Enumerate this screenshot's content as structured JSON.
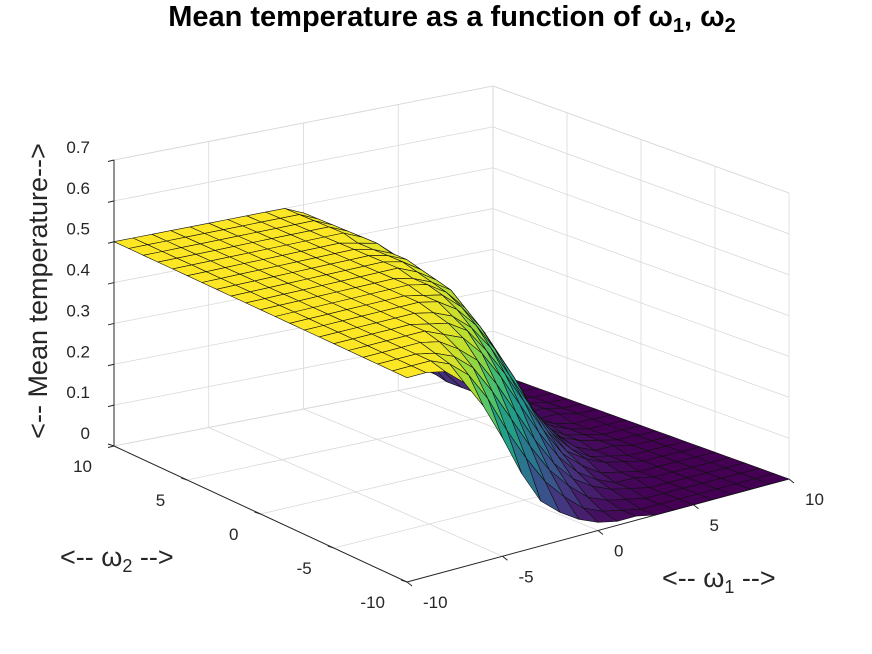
{
  "chart_data": {
    "type": "surface",
    "title_main": "Mean temperature as a function of ω",
    "title_sub1": "1",
    "title_sep": ", ω",
    "title_sub2": "2",
    "xlabel_pre": "<-- ω",
    "xlabel_sub": "1",
    "xlabel_post": " -->",
    "ylabel_pre": "<-- ω",
    "ylabel_sub": "2",
    "ylabel_post": " -->",
    "zlabel": "<-- Mean temperature-->",
    "xlim": [
      -10,
      10
    ],
    "ylim": [
      -10,
      10
    ],
    "zlim": [
      0,
      0.7
    ],
    "x_ticks": [
      "-10",
      "-5",
      "0",
      "5",
      "10"
    ],
    "y_ticks": [
      "-10",
      "-5",
      "0",
      "5",
      "10"
    ],
    "z_ticks": [
      "0",
      "0.1",
      "0.2",
      "0.3",
      "0.4",
      "0.5",
      "0.6",
      "0.7"
    ],
    "grid": true,
    "colormap": "viridis",
    "colormap_stops": [
      "#440154",
      "#472c7a",
      "#3b518b",
      "#2c718e",
      "#21908d",
      "#27ad81",
      "#5cc863",
      "#aadc32",
      "#fde725"
    ],
    "grid_resolution": 21,
    "w1": [
      -10,
      -9,
      -8,
      -7,
      -6,
      -5,
      -4,
      -3,
      -2,
      -1,
      0,
      1,
      2,
      3,
      4,
      5,
      6,
      7,
      8,
      9,
      10
    ],
    "w2": [
      -10,
      -9,
      -8,
      -7,
      -6,
      -5,
      -4,
      -3,
      -2,
      -1,
      0,
      1,
      2,
      3,
      4,
      5,
      6,
      7,
      8,
      9,
      10
    ],
    "z": [
      [
        0.5,
        0.5,
        0.49,
        0.45,
        0.38,
        0.29,
        0.19,
        0.11,
        0.07,
        0.04,
        0.02,
        0.01,
        0.01,
        0.0,
        0.0,
        0.0,
        0.0,
        0.0,
        0.0,
        0.0,
        0.0
      ],
      [
        0.5,
        0.5,
        0.5,
        0.48,
        0.44,
        0.37,
        0.28,
        0.2,
        0.13,
        0.08,
        0.04,
        0.02,
        0.01,
        0.0,
        0.0,
        0.0,
        0.0,
        0.0,
        0.0,
        0.0,
        0.0
      ],
      [
        0.5,
        0.5,
        0.5,
        0.49,
        0.47,
        0.43,
        0.36,
        0.28,
        0.2,
        0.13,
        0.08,
        0.04,
        0.02,
        0.01,
        0.0,
        0.0,
        0.0,
        0.0,
        0.0,
        0.0,
        0.0
      ],
      [
        0.5,
        0.5,
        0.5,
        0.5,
        0.49,
        0.46,
        0.42,
        0.35,
        0.27,
        0.19,
        0.12,
        0.07,
        0.04,
        0.02,
        0.01,
        0.0,
        0.0,
        0.0,
        0.0,
        0.0,
        0.0
      ],
      [
        0.5,
        0.5,
        0.5,
        0.5,
        0.5,
        0.48,
        0.46,
        0.41,
        0.34,
        0.26,
        0.18,
        0.11,
        0.06,
        0.03,
        0.01,
        0.01,
        0.0,
        0.0,
        0.0,
        0.0,
        0.0
      ],
      [
        0.5,
        0.5,
        0.5,
        0.5,
        0.5,
        0.49,
        0.48,
        0.45,
        0.39,
        0.32,
        0.24,
        0.16,
        0.09,
        0.05,
        0.02,
        0.01,
        0.0,
        0.0,
        0.0,
        0.0,
        0.0
      ],
      [
        0.5,
        0.5,
        0.5,
        0.5,
        0.5,
        0.5,
        0.49,
        0.47,
        0.43,
        0.37,
        0.29,
        0.21,
        0.13,
        0.07,
        0.04,
        0.02,
        0.01,
        0.0,
        0.0,
        0.0,
        0.0
      ],
      [
        0.5,
        0.5,
        0.5,
        0.5,
        0.5,
        0.5,
        0.5,
        0.49,
        0.46,
        0.41,
        0.34,
        0.26,
        0.17,
        0.1,
        0.05,
        0.02,
        0.01,
        0.0,
        0.0,
        0.0,
        0.0
      ],
      [
        0.5,
        0.5,
        0.5,
        0.5,
        0.5,
        0.5,
        0.5,
        0.49,
        0.48,
        0.44,
        0.38,
        0.3,
        0.21,
        0.13,
        0.07,
        0.03,
        0.01,
        0.01,
        0.0,
        0.0,
        0.0
      ],
      [
        0.5,
        0.5,
        0.5,
        0.5,
        0.5,
        0.5,
        0.5,
        0.5,
        0.49,
        0.46,
        0.41,
        0.34,
        0.25,
        0.16,
        0.09,
        0.04,
        0.02,
        0.01,
        0.0,
        0.0,
        0.0
      ],
      [
        0.5,
        0.5,
        0.5,
        0.5,
        0.5,
        0.5,
        0.5,
        0.5,
        0.49,
        0.47,
        0.44,
        0.37,
        0.28,
        0.19,
        0.11,
        0.05,
        0.02,
        0.01,
        0.0,
        0.0,
        0.0
      ],
      [
        0.5,
        0.5,
        0.5,
        0.5,
        0.5,
        0.5,
        0.5,
        0.5,
        0.5,
        0.48,
        0.45,
        0.4,
        0.31,
        0.21,
        0.12,
        0.06,
        0.03,
        0.01,
        0.0,
        0.0,
        0.0
      ],
      [
        0.5,
        0.5,
        0.5,
        0.5,
        0.5,
        0.5,
        0.5,
        0.5,
        0.5,
        0.49,
        0.46,
        0.41,
        0.33,
        0.23,
        0.14,
        0.07,
        0.03,
        0.01,
        0.0,
        0.0,
        0.0
      ],
      [
        0.5,
        0.5,
        0.5,
        0.5,
        0.5,
        0.5,
        0.5,
        0.5,
        0.5,
        0.49,
        0.47,
        0.42,
        0.35,
        0.25,
        0.15,
        0.08,
        0.03,
        0.01,
        0.01,
        0.0,
        0.0
      ],
      [
        0.5,
        0.5,
        0.5,
        0.5,
        0.5,
        0.5,
        0.5,
        0.5,
        0.5,
        0.49,
        0.47,
        0.43,
        0.36,
        0.26,
        0.16,
        0.08,
        0.04,
        0.01,
        0.01,
        0.0,
        0.0
      ],
      [
        0.5,
        0.5,
        0.5,
        0.5,
        0.5,
        0.5,
        0.5,
        0.5,
        0.5,
        0.49,
        0.48,
        0.44,
        0.36,
        0.27,
        0.17,
        0.09,
        0.04,
        0.02,
        0.01,
        0.0,
        0.0
      ],
      [
        0.5,
        0.5,
        0.5,
        0.5,
        0.5,
        0.5,
        0.5,
        0.5,
        0.5,
        0.5,
        0.48,
        0.44,
        0.37,
        0.27,
        0.17,
        0.09,
        0.04,
        0.02,
        0.01,
        0.0,
        0.0
      ],
      [
        0.5,
        0.5,
        0.5,
        0.5,
        0.5,
        0.5,
        0.5,
        0.5,
        0.5,
        0.5,
        0.48,
        0.44,
        0.37,
        0.28,
        0.18,
        0.09,
        0.04,
        0.02,
        0.01,
        0.0,
        0.0
      ],
      [
        0.5,
        0.5,
        0.5,
        0.5,
        0.5,
        0.5,
        0.5,
        0.5,
        0.5,
        0.5,
        0.48,
        0.44,
        0.38,
        0.28,
        0.18,
        0.1,
        0.04,
        0.02,
        0.01,
        0.0,
        0.0
      ],
      [
        0.5,
        0.5,
        0.5,
        0.5,
        0.5,
        0.5,
        0.5,
        0.5,
        0.5,
        0.5,
        0.48,
        0.45,
        0.38,
        0.28,
        0.18,
        0.1,
        0.05,
        0.02,
        0.01,
        0.0,
        0.0
      ],
      [
        0.5,
        0.5,
        0.5,
        0.5,
        0.5,
        0.5,
        0.5,
        0.5,
        0.5,
        0.5,
        0.48,
        0.45,
        0.38,
        0.28,
        0.18,
        0.1,
        0.05,
        0.02,
        0.01,
        0.0,
        0.0
      ]
    ]
  }
}
